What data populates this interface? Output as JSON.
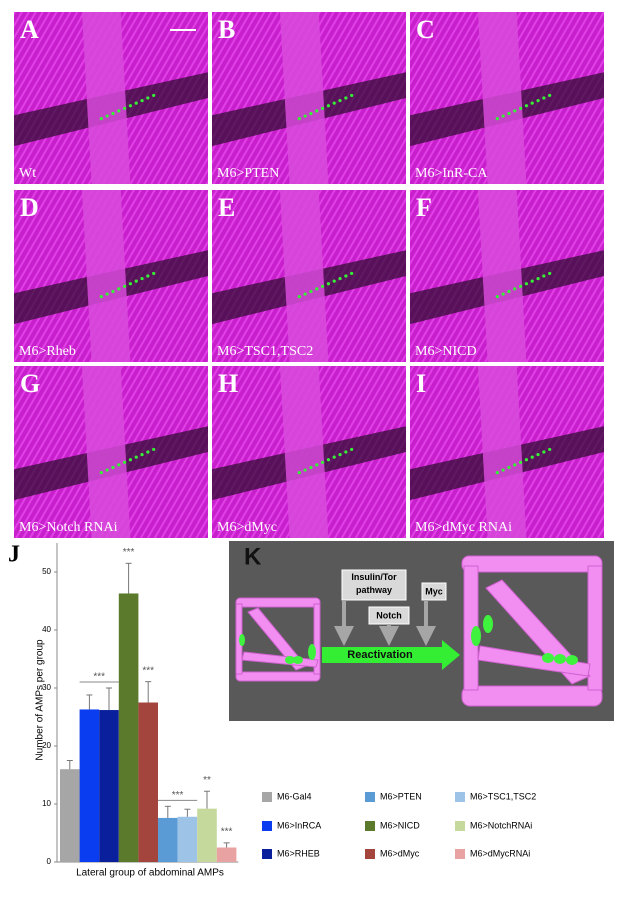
{
  "panels": [
    {
      "letter": "A",
      "label": "Wt"
    },
    {
      "letter": "B",
      "label": "M6>PTEN"
    },
    {
      "letter": "C",
      "label": "M6>InR-CA"
    },
    {
      "letter": "D",
      "label": "M6>Rheb"
    },
    {
      "letter": "E",
      "label": "M6>TSC1,TSC2"
    },
    {
      "letter": "F",
      "label": "M6>NICD"
    },
    {
      "letter": "G",
      "label": "M6>Notch RNAi"
    },
    {
      "letter": "H",
      "label": "M6>dMyc"
    },
    {
      "letter": "I",
      "label": "M6>dMyc RNAi"
    }
  ],
  "chart_data": {
    "type": "bar",
    "panel_letter": "J",
    "y_label": "Number of AMPs per group",
    "x_label": "Lateral group of abdominal AMPs",
    "ylim": [
      0,
      55
    ],
    "yticks": [
      0,
      10,
      20,
      30,
      40,
      50
    ],
    "series": [
      {
        "name": "M6-Gal4",
        "color": "#a6a6a6",
        "values": [
          16
        ],
        "errors": [
          1.5
        ]
      },
      {
        "name": "M6>InRCA",
        "color": "#0a3cf0",
        "values": [
          26.3
        ],
        "errors": [
          2.5
        ]
      },
      {
        "name": "M6>RHEB",
        "color": "#0a1f9c",
        "values": [
          26.2
        ],
        "errors": [
          3.8
        ]
      },
      {
        "name": "M6>NICD",
        "color": "#5b7a2c",
        "values": [
          46.3
        ],
        "errors": [
          5.2
        ]
      },
      {
        "name": "M6>dMyc",
        "color": "#a3443d",
        "values": [
          27.5
        ],
        "errors": [
          3.6
        ]
      },
      {
        "name": "M6>PTEN",
        "color": "#5b9bd5",
        "values": [
          7.6
        ],
        "errors": [
          2
        ]
      },
      {
        "name": "M6>TSC1,TSC2",
        "color": "#9dc3e6",
        "values": [
          7.8
        ],
        "errors": [
          1.3
        ]
      },
      {
        "name": "M6>NotchRNAi",
        "color": "#c6d99d",
        "values": [
          9.2
        ],
        "errors": [
          3
        ]
      },
      {
        "name": "M6>dMycRNAi",
        "color": "#e8a2a2",
        "values": [
          2.5
        ],
        "errors": [
          0.8
        ]
      }
    ],
    "annotations": [
      {
        "text": "***",
        "over": [
          1,
          2
        ]
      },
      {
        "text": "***",
        "over": [
          3
        ]
      },
      {
        "text": "***",
        "over": [
          4
        ]
      },
      {
        "text": "***",
        "over": [
          5,
          6
        ]
      },
      {
        "text": "**",
        "over": [
          7
        ]
      },
      {
        "text": "***",
        "over": [
          8
        ]
      }
    ]
  },
  "diagram": {
    "letter": "K",
    "inputs": [
      "Insulin/Tor pathway",
      "Notch",
      "Myc"
    ],
    "arrow_label": "Reactivation"
  }
}
